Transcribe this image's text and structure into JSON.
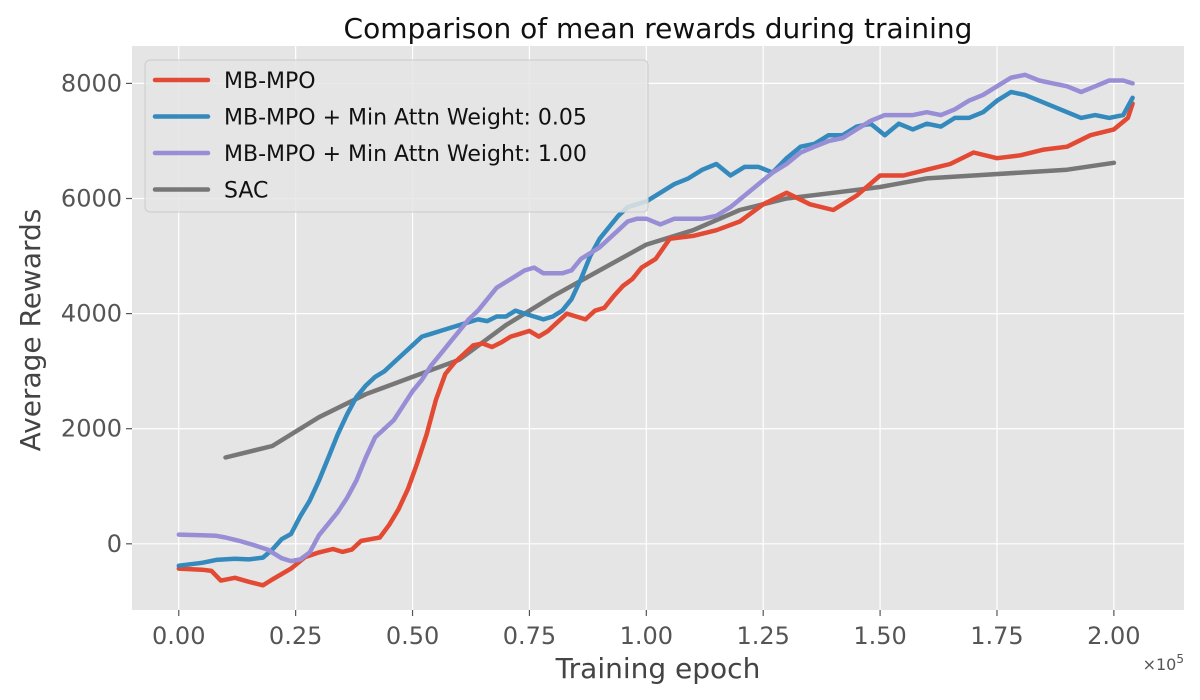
{
  "chart_data": {
    "type": "line",
    "title": "Comparison of mean rewards during training",
    "xlabel": "Training epoch",
    "ylabel": "Average Rewards",
    "x_exponent_label": "×10",
    "x_exponent_power": "5",
    "xlim": [
      -0.1,
      2.15
    ],
    "ylim": [
      -1150,
      8650
    ],
    "x_ticks": [
      0.0,
      0.25,
      0.5,
      0.75,
      1.0,
      1.25,
      1.5,
      1.75,
      2.0
    ],
    "x_tick_labels": [
      "0.00",
      "0.25",
      "0.50",
      "0.75",
      "1.00",
      "1.25",
      "1.50",
      "1.75",
      "2.00"
    ],
    "y_ticks": [
      0,
      2000,
      4000,
      6000,
      8000
    ],
    "y_tick_labels": [
      "0",
      "2000",
      "4000",
      "6000",
      "8000"
    ],
    "grid": true,
    "legend_position": "top-left",
    "colors": {
      "plot_background": "#e5e5e5",
      "grid": "#ffffff"
    },
    "series": [
      {
        "name": "MB-MPO",
        "color": "#e24a33",
        "points": [
          [
            0.0,
            -430
          ],
          [
            0.05,
            -450
          ],
          [
            0.07,
            -470
          ],
          [
            0.09,
            -640
          ],
          [
            0.12,
            -590
          ],
          [
            0.15,
            -660
          ],
          [
            0.18,
            -720
          ],
          [
            0.2,
            -620
          ],
          [
            0.24,
            -430
          ],
          [
            0.27,
            -230
          ],
          [
            0.3,
            -150
          ],
          [
            0.33,
            -90
          ],
          [
            0.35,
            -140
          ],
          [
            0.37,
            -100
          ],
          [
            0.39,
            50
          ],
          [
            0.41,
            80
          ],
          [
            0.43,
            110
          ],
          [
            0.45,
            330
          ],
          [
            0.47,
            600
          ],
          [
            0.49,
            950
          ],
          [
            0.51,
            1400
          ],
          [
            0.53,
            1900
          ],
          [
            0.55,
            2500
          ],
          [
            0.57,
            2950
          ],
          [
            0.59,
            3150
          ],
          [
            0.61,
            3300
          ],
          [
            0.63,
            3450
          ],
          [
            0.65,
            3480
          ],
          [
            0.67,
            3420
          ],
          [
            0.69,
            3500
          ],
          [
            0.71,
            3600
          ],
          [
            0.73,
            3650
          ],
          [
            0.75,
            3700
          ],
          [
            0.77,
            3600
          ],
          [
            0.79,
            3700
          ],
          [
            0.81,
            3850
          ],
          [
            0.83,
            4000
          ],
          [
            0.85,
            3950
          ],
          [
            0.87,
            3900
          ],
          [
            0.89,
            4050
          ],
          [
            0.91,
            4100
          ],
          [
            0.93,
            4300
          ],
          [
            0.95,
            4480
          ],
          [
            0.97,
            4600
          ],
          [
            0.99,
            4800
          ],
          [
            1.02,
            4950
          ],
          [
            1.05,
            5300
          ],
          [
            1.1,
            5350
          ],
          [
            1.15,
            5450
          ],
          [
            1.2,
            5600
          ],
          [
            1.25,
            5900
          ],
          [
            1.3,
            6100
          ],
          [
            1.35,
            5900
          ],
          [
            1.4,
            5800
          ],
          [
            1.45,
            6050
          ],
          [
            1.5,
            6400
          ],
          [
            1.55,
            6400
          ],
          [
            1.6,
            6500
          ],
          [
            1.65,
            6600
          ],
          [
            1.7,
            6800
          ],
          [
            1.75,
            6700
          ],
          [
            1.8,
            6750
          ],
          [
            1.85,
            6850
          ],
          [
            1.9,
            6900
          ],
          [
            1.95,
            7100
          ],
          [
            2.0,
            7200
          ],
          [
            2.03,
            7400
          ],
          [
            2.04,
            7650
          ]
        ]
      },
      {
        "name": "MB-MPO + Min Attn Weight: 0.05",
        "color": "#348abd",
        "points": [
          [
            0.0,
            -380
          ],
          [
            0.05,
            -330
          ],
          [
            0.08,
            -280
          ],
          [
            0.12,
            -260
          ],
          [
            0.15,
            -270
          ],
          [
            0.18,
            -240
          ],
          [
            0.2,
            -100
          ],
          [
            0.22,
            80
          ],
          [
            0.24,
            170
          ],
          [
            0.26,
            480
          ],
          [
            0.28,
            750
          ],
          [
            0.3,
            1100
          ],
          [
            0.32,
            1500
          ],
          [
            0.34,
            1900
          ],
          [
            0.36,
            2250
          ],
          [
            0.38,
            2550
          ],
          [
            0.4,
            2750
          ],
          [
            0.42,
            2900
          ],
          [
            0.44,
            3000
          ],
          [
            0.46,
            3150
          ],
          [
            0.48,
            3300
          ],
          [
            0.5,
            3450
          ],
          [
            0.52,
            3600
          ],
          [
            0.54,
            3650
          ],
          [
            0.56,
            3700
          ],
          [
            0.58,
            3750
          ],
          [
            0.6,
            3800
          ],
          [
            0.62,
            3850
          ],
          [
            0.64,
            3900
          ],
          [
            0.66,
            3870
          ],
          [
            0.68,
            3950
          ],
          [
            0.7,
            3950
          ],
          [
            0.72,
            4050
          ],
          [
            0.74,
            4000
          ],
          [
            0.76,
            3950
          ],
          [
            0.78,
            3900
          ],
          [
            0.8,
            3950
          ],
          [
            0.82,
            4050
          ],
          [
            0.84,
            4250
          ],
          [
            0.86,
            4600
          ],
          [
            0.88,
            5000
          ],
          [
            0.9,
            5300
          ],
          [
            0.92,
            5500
          ],
          [
            0.94,
            5700
          ],
          [
            0.96,
            5850
          ],
          [
            0.98,
            5900
          ],
          [
            1.0,
            5950
          ],
          [
            1.03,
            6100
          ],
          [
            1.06,
            6250
          ],
          [
            1.09,
            6350
          ],
          [
            1.12,
            6500
          ],
          [
            1.15,
            6600
          ],
          [
            1.18,
            6400
          ],
          [
            1.21,
            6550
          ],
          [
            1.24,
            6550
          ],
          [
            1.27,
            6450
          ],
          [
            1.3,
            6700
          ],
          [
            1.33,
            6900
          ],
          [
            1.36,
            6950
          ],
          [
            1.39,
            7100
          ],
          [
            1.42,
            7100
          ],
          [
            1.45,
            7250
          ],
          [
            1.48,
            7300
          ],
          [
            1.51,
            7100
          ],
          [
            1.54,
            7300
          ],
          [
            1.57,
            7200
          ],
          [
            1.6,
            7300
          ],
          [
            1.63,
            7250
          ],
          [
            1.66,
            7400
          ],
          [
            1.69,
            7400
          ],
          [
            1.72,
            7500
          ],
          [
            1.75,
            7700
          ],
          [
            1.78,
            7850
          ],
          [
            1.81,
            7800
          ],
          [
            1.84,
            7700
          ],
          [
            1.87,
            7600
          ],
          [
            1.9,
            7500
          ],
          [
            1.93,
            7400
          ],
          [
            1.96,
            7450
          ],
          [
            1.99,
            7400
          ],
          [
            2.02,
            7450
          ],
          [
            2.04,
            7750
          ]
        ]
      },
      {
        "name": "MB-MPO + Min Attn Weight: 1.00",
        "color": "#988ed5",
        "points": [
          [
            0.0,
            160
          ],
          [
            0.05,
            150
          ],
          [
            0.08,
            140
          ],
          [
            0.1,
            110
          ],
          [
            0.13,
            50
          ],
          [
            0.16,
            -20
          ],
          [
            0.19,
            -100
          ],
          [
            0.22,
            -250
          ],
          [
            0.24,
            -300
          ],
          [
            0.26,
            -270
          ],
          [
            0.28,
            -150
          ],
          [
            0.3,
            150
          ],
          [
            0.32,
            350
          ],
          [
            0.34,
            550
          ],
          [
            0.36,
            800
          ],
          [
            0.38,
            1100
          ],
          [
            0.4,
            1500
          ],
          [
            0.42,
            1850
          ],
          [
            0.44,
            2000
          ],
          [
            0.46,
            2150
          ],
          [
            0.48,
            2400
          ],
          [
            0.5,
            2650
          ],
          [
            0.52,
            2850
          ],
          [
            0.54,
            3100
          ],
          [
            0.56,
            3300
          ],
          [
            0.58,
            3500
          ],
          [
            0.6,
            3700
          ],
          [
            0.62,
            3900
          ],
          [
            0.64,
            4050
          ],
          [
            0.66,
            4250
          ],
          [
            0.68,
            4450
          ],
          [
            0.7,
            4550
          ],
          [
            0.72,
            4650
          ],
          [
            0.74,
            4750
          ],
          [
            0.76,
            4800
          ],
          [
            0.78,
            4700
          ],
          [
            0.8,
            4700
          ],
          [
            0.82,
            4700
          ],
          [
            0.84,
            4750
          ],
          [
            0.86,
            4950
          ],
          [
            0.88,
            5050
          ],
          [
            0.9,
            5150
          ],
          [
            0.92,
            5300
          ],
          [
            0.94,
            5450
          ],
          [
            0.96,
            5600
          ],
          [
            0.98,
            5650
          ],
          [
            1.0,
            5650
          ],
          [
            1.03,
            5550
          ],
          [
            1.06,
            5650
          ],
          [
            1.09,
            5650
          ],
          [
            1.12,
            5650
          ],
          [
            1.15,
            5700
          ],
          [
            1.18,
            5850
          ],
          [
            1.21,
            6050
          ],
          [
            1.24,
            6250
          ],
          [
            1.27,
            6450
          ],
          [
            1.3,
            6600
          ],
          [
            1.33,
            6800
          ],
          [
            1.36,
            6900
          ],
          [
            1.39,
            7000
          ],
          [
            1.42,
            7050
          ],
          [
            1.45,
            7200
          ],
          [
            1.48,
            7350
          ],
          [
            1.51,
            7450
          ],
          [
            1.54,
            7450
          ],
          [
            1.57,
            7450
          ],
          [
            1.6,
            7500
          ],
          [
            1.63,
            7450
          ],
          [
            1.66,
            7550
          ],
          [
            1.69,
            7700
          ],
          [
            1.72,
            7800
          ],
          [
            1.75,
            7950
          ],
          [
            1.78,
            8100
          ],
          [
            1.81,
            8150
          ],
          [
            1.84,
            8050
          ],
          [
            1.87,
            8000
          ],
          [
            1.9,
            7950
          ],
          [
            1.93,
            7850
          ],
          [
            1.96,
            7950
          ],
          [
            1.99,
            8050
          ],
          [
            2.02,
            8050
          ],
          [
            2.04,
            8000
          ]
        ]
      },
      {
        "name": "SAC",
        "color": "#777777",
        "points": [
          [
            0.1,
            1500
          ],
          [
            0.2,
            1700
          ],
          [
            0.3,
            2200
          ],
          [
            0.4,
            2600
          ],
          [
            0.5,
            2900
          ],
          [
            0.6,
            3200
          ],
          [
            0.7,
            3800
          ],
          [
            0.8,
            4300
          ],
          [
            0.9,
            4750
          ],
          [
            1.0,
            5200
          ],
          [
            1.1,
            5450
          ],
          [
            1.2,
            5800
          ],
          [
            1.3,
            6000
          ],
          [
            1.4,
            6100
          ],
          [
            1.5,
            6200
          ],
          [
            1.6,
            6350
          ],
          [
            1.7,
            6400
          ],
          [
            1.8,
            6450
          ],
          [
            1.9,
            6500
          ],
          [
            2.0,
            6620
          ]
        ]
      }
    ]
  }
}
